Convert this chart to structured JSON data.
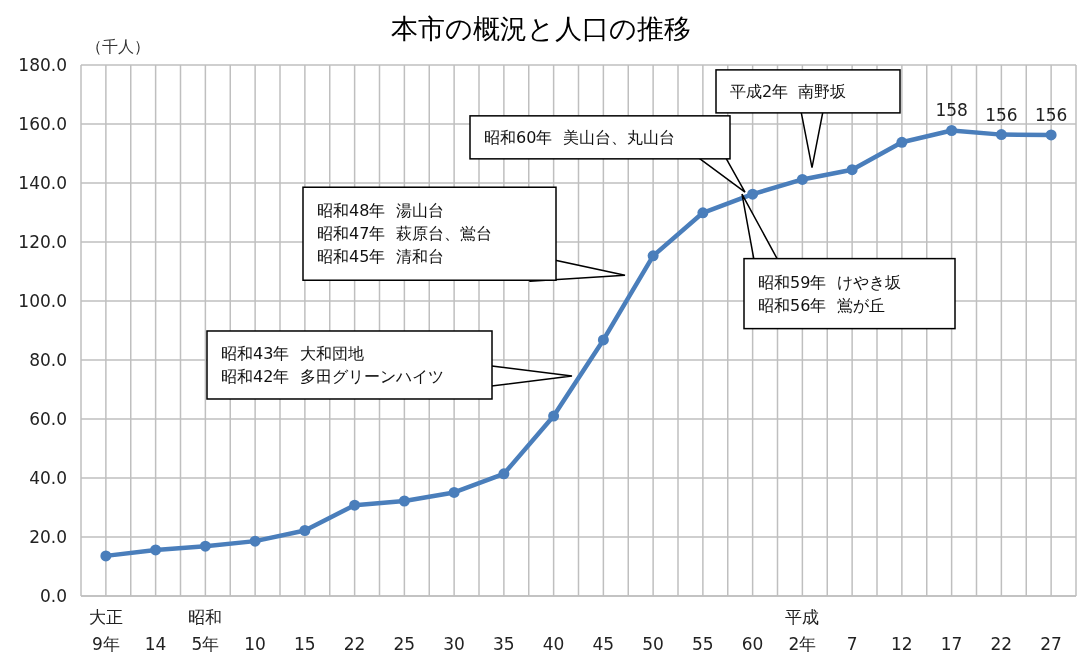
{
  "chart_data": {
    "type": "line",
    "title": "本市の概況と人口の推移",
    "ylabel": "（千人）",
    "categories": [
      "大正\n9年",
      "14",
      "昭和\n5年",
      "10",
      "15",
      "22",
      "25",
      "30",
      "35",
      "40",
      "45",
      "50",
      "55",
      "60",
      "平成\n2年",
      "7",
      "12",
      "17",
      "22",
      "27"
    ],
    "series": [
      {
        "color": "#4a7ebb",
        "values": [
          13.6,
          15.6,
          16.9,
          18.6,
          22.2,
          30.8,
          32.2,
          35.1,
          41.4,
          61.0,
          86.8,
          115.3,
          129.9,
          136.2,
          141.2,
          144.5,
          153.8,
          157.8,
          156.4,
          156.3
        ],
        "value_labels": [
          null,
          null,
          null,
          null,
          null,
          null,
          null,
          null,
          null,
          null,
          null,
          null,
          null,
          null,
          null,
          null,
          null,
          "158",
          "156",
          "156"
        ]
      }
    ],
    "ylim": [
      0,
      180
    ],
    "yticks": [
      {
        "value": 0,
        "label": "0.0"
      },
      {
        "value": 20,
        "label": "20.0"
      },
      {
        "value": 40,
        "label": "40.0"
      },
      {
        "value": 60,
        "label": "60.0"
      },
      {
        "value": 80,
        "label": "80.0"
      },
      {
        "value": 100,
        "label": "100.0"
      },
      {
        "value": 120,
        "label": "120.0"
      },
      {
        "value": 140,
        "label": "140.0"
      },
      {
        "value": 160,
        "label": "160.0"
      },
      {
        "value": 180,
        "label": "180.0"
      }
    ],
    "grid": true,
    "marker": "circle",
    "line_style": "solid",
    "annotations": [
      "昭和43年  大和団地",
      "昭和42年  多田グリーンハイツ",
      "昭和48年  湯山台",
      "昭和47年  萩原台、鴬台",
      "昭和45年  清和台",
      "昭和60年  美山台、丸山台",
      "平成2年  南野坂",
      "昭和59年  けやき坂",
      "昭和56年  鴬が丘"
    ]
  }
}
